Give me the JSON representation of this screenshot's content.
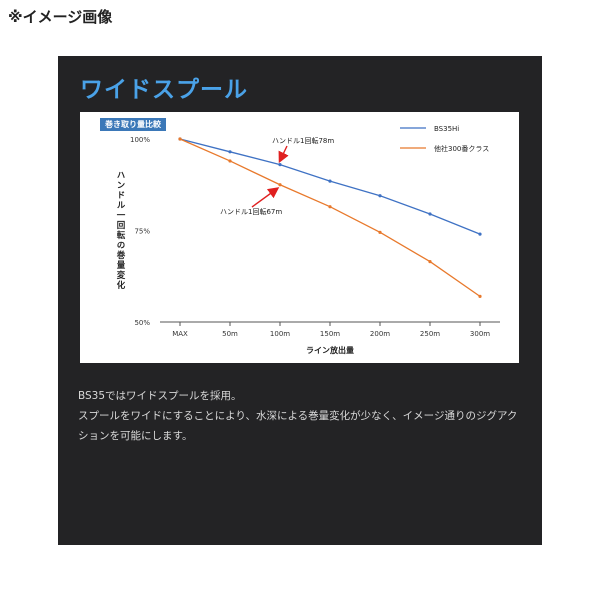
{
  "header": {
    "note": "※イメージ画像"
  },
  "panel": {
    "title": "ワイドスプール",
    "badge": "巻き取り量比較",
    "description": [
      "BS35ではワイドスプールを採用。",
      "スプールをワイドにすることにより、水深による巻量変化が少なく、イメージ通りのジグアク",
      "ションを可能にします。"
    ]
  },
  "chart_data": {
    "type": "line",
    "categories": [
      "MAX",
      "50m",
      "100m",
      "150m",
      "200m",
      "250m",
      "300m"
    ],
    "series": [
      {
        "name": "BS35Hi",
        "color": "#3f72c4",
        "values": [
          100,
          96.5,
          93,
          88.5,
          84.5,
          79.5,
          74
        ]
      },
      {
        "name": "他社300番クラス",
        "color": "#e8792c",
        "values": [
          100,
          94,
          87.5,
          81.5,
          74.5,
          66.5,
          57
        ]
      }
    ],
    "xlabel": "ライン放出量",
    "ylabel": "ハンドル一回転の巻量変化",
    "yticks": [
      100,
      75,
      50
    ],
    "ytick_labels": [
      "100%",
      "75%",
      "50%"
    ],
    "ylim": [
      50,
      100
    ],
    "annotations": [
      {
        "text": "ハンドル1回転78m",
        "series": 0,
        "point": 2
      },
      {
        "text": "ハンドル1回転67m",
        "series": 1,
        "point": 2
      }
    ],
    "grid": false,
    "legend": "top-right",
    "arrow_color": "#e02020"
  }
}
